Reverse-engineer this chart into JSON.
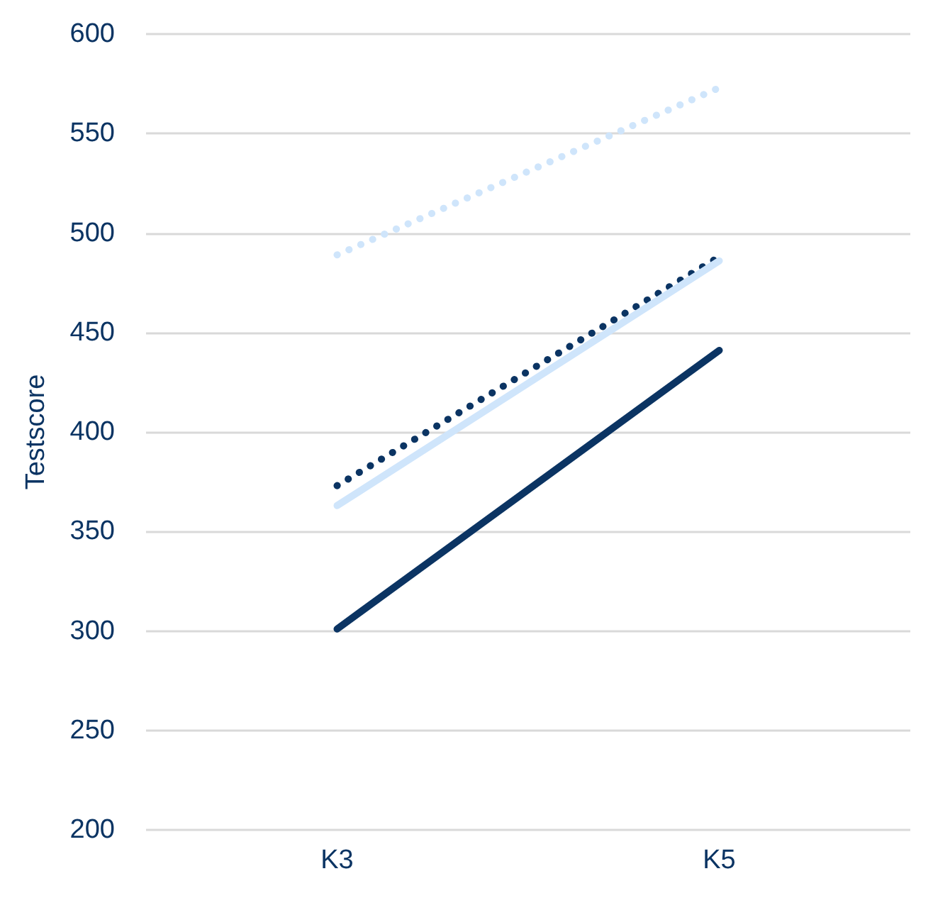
{
  "chart_data": {
    "type": "line",
    "ylabel": "Testscore",
    "categories": [
      "K3",
      "K5"
    ],
    "series": [
      {
        "color": "#cfe5fb",
        "line_style": "dotted",
        "values": [
          489,
          573
        ]
      },
      {
        "color": "#0b3463",
        "line_style": "dotted",
        "values": [
          373,
          488
        ]
      },
      {
        "color": "#cfe5fb",
        "line_style": "solid",
        "values": [
          363,
          486
        ]
      },
      {
        "color": "#0b3463",
        "line_style": "solid",
        "values": [
          301,
          441
        ]
      }
    ],
    "ylim": [
      200,
      600
    ],
    "yticks": [
      200,
      250,
      300,
      350,
      400,
      450,
      500,
      550,
      600
    ],
    "grid": "y",
    "marker": "none"
  }
}
